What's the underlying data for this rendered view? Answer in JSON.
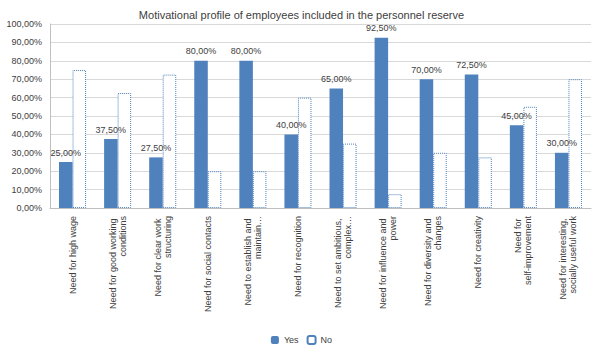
{
  "chart_data": {
    "type": "bar",
    "title": "Motivational profile of employees included in the personnel reserve",
    "categories": [
      "Need for high wage",
      "Need for good working conditions",
      "Need for clear work structuring",
      "Need for social contacts",
      "Need to establish and maintain…",
      "Need for recognition",
      "Need to set ambitious, complex…",
      "Need for influence and power",
      "Need for diversity and changes",
      "Need for creativity",
      "Need for self-improvement",
      "Need for interesting, socially useful work"
    ],
    "series": [
      {
        "name": "Yes",
        "color": "#4f81bd",
        "values": [
          25,
          37.5,
          27.5,
          80,
          80,
          40,
          65,
          92.5,
          70,
          72.5,
          45,
          30
        ],
        "value_labels": [
          "25,00%",
          "37,50%",
          "27,50%",
          "80,00%",
          "80,00%",
          "40,00%",
          "65,00%",
          "92,50%",
          "70,00%",
          "72,50%",
          "45,00%",
          "30,00%"
        ]
      },
      {
        "name": "No",
        "color": "#4f81bd",
        "line_style": "dotted",
        "values": [
          75,
          62.5,
          72.5,
          20,
          20,
          60,
          35,
          7.5,
          30,
          27.5,
          55,
          70
        ]
      }
    ],
    "ylim": [
      0,
      100
    ],
    "yticks": [
      {
        "value": 0,
        "label": "0,00%"
      },
      {
        "value": 10,
        "label": "10,00%"
      },
      {
        "value": 20,
        "label": "20,00%"
      },
      {
        "value": 30,
        "label": "30,00%"
      },
      {
        "value": 40,
        "label": "40,00%"
      },
      {
        "value": 50,
        "label": "50,00%"
      },
      {
        "value": 60,
        "label": "60,00%"
      },
      {
        "value": 70,
        "label": "70,00%"
      },
      {
        "value": 80,
        "label": "80,00%"
      },
      {
        "value": 90,
        "label": "90,00%"
      },
      {
        "value": 100,
        "label": "100,00%"
      }
    ],
    "grid": true,
    "legend": "bottom",
    "data_labels": true
  }
}
